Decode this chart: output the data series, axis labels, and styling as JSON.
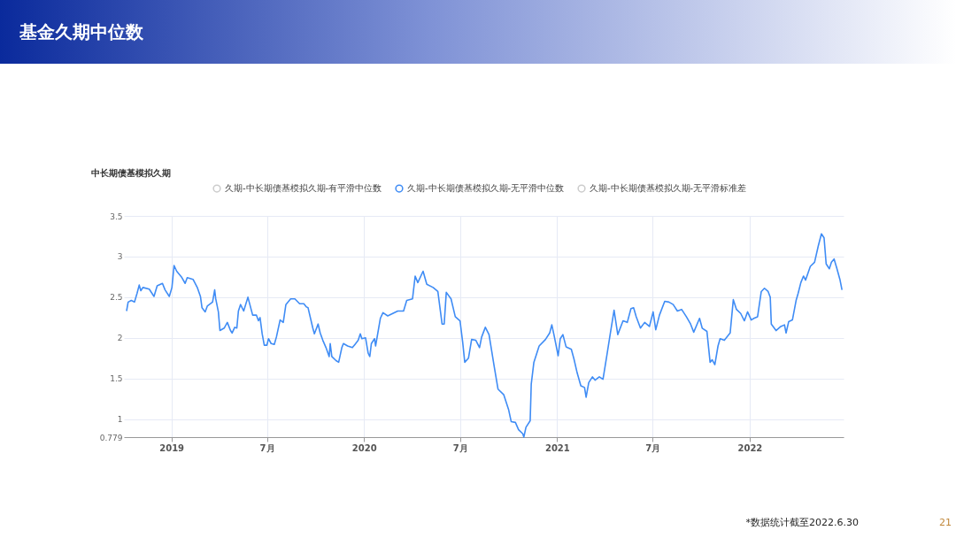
{
  "chart_data": {
    "type": "line",
    "title": "基金久期中位数",
    "subtitle": "中长期债基模拟久期",
    "annotations": [
      "*数据统计截至2022.6.30",
      "21"
    ],
    "xlim": [
      "2018-10-03",
      "2022-06-28"
    ],
    "xticks": [
      {
        "value": "2019-01-01",
        "label": "2019"
      },
      {
        "value": "2019-07-01",
        "label": "7月"
      },
      {
        "value": "2020-01-01",
        "label": "2020"
      },
      {
        "value": "2020-07-01",
        "label": "7月"
      },
      {
        "value": "2021-01-01",
        "label": "2021"
      },
      {
        "value": "2021-07-01",
        "label": "7月"
      },
      {
        "value": "2022-01-01",
        "label": "2022"
      }
    ],
    "ylim": [
      0.779,
      3.5
    ],
    "yticks": [
      0.779,
      1,
      1.5,
      2,
      2.5,
      3,
      3.5
    ],
    "grid": true,
    "legend": "top",
    "series": [
      {
        "name": "久期-中长期债基模拟久期-有平滑中位数",
        "color": "#cccccc"
      },
      {
        "name": "久期-中长期债基模拟久期-无平滑中位数",
        "color": "#3f8cf5",
        "x": [
          "2018-10-08",
          "2018-10-11",
          "2018-10-17",
          "2018-10-23",
          "2018-10-28",
          "2018-11-01",
          "2018-11-04",
          "2018-11-08",
          "2018-11-20",
          "2018-11-29",
          "2018-12-05",
          "2018-12-15",
          "2018-12-20",
          "2018-12-28",
          "2019-01-02",
          "2019-01-06",
          "2019-01-11",
          "2019-01-20",
          "2019-01-27",
          "2019-01-31",
          "2019-02-11",
          "2019-02-19",
          "2019-02-25",
          "2019-02-28",
          "2019-03-06",
          "2019-03-10",
          "2019-03-20",
          "2019-03-24",
          "2019-03-26",
          "2019-03-31",
          "2019-04-03",
          "2019-04-11",
          "2019-04-17",
          "2019-04-23",
          "2019-04-26",
          "2019-05-01",
          "2019-05-05",
          "2019-05-08",
          "2019-05-12",
          "2019-05-18",
          "2019-05-26",
          "2019-06-04",
          "2019-06-11",
          "2019-06-15",
          "2019-06-18",
          "2019-06-22",
          "2019-06-26",
          "2019-07-01",
          "2019-07-04",
          "2019-07-09",
          "2019-07-15",
          "2019-07-19",
          "2019-07-26",
          "2019-08-01",
          "2019-08-06",
          "2019-08-15",
          "2019-08-23",
          "2019-09-01",
          "2019-09-09",
          "2019-09-14",
          "2019-09-17",
          "2019-09-26",
          "2019-09-29",
          "2019-10-06",
          "2019-10-10",
          "2019-10-15",
          "2019-10-21",
          "2019-10-27",
          "2019-10-29",
          "2019-11-01",
          "2019-11-09",
          "2019-11-14",
          "2019-11-20",
          "2019-11-23",
          "2019-12-01",
          "2019-12-10",
          "2019-12-15",
          "2019-12-21",
          "2019-12-25",
          "2019-12-28",
          "2020-01-04",
          "2020-01-09",
          "2020-01-12",
          "2020-01-15",
          "2020-01-21",
          "2020-01-23",
          "2020-02-01",
          "2020-02-06",
          "2020-02-15",
          "2020-03-05",
          "2020-03-16",
          "2020-03-22",
          "2020-04-02",
          "2020-04-07",
          "2020-04-12",
          "2020-04-22",
          "2020-04-29",
          "2020-05-11",
          "2020-05-20",
          "2020-05-28",
          "2020-06-01",
          "2020-06-05",
          "2020-06-14",
          "2020-06-22",
          "2020-07-01",
          "2020-07-06",
          "2020-07-10",
          "2020-07-17",
          "2020-07-23",
          "2020-07-31",
          "2020-08-07",
          "2020-08-11",
          "2020-08-18",
          "2020-08-25",
          "2020-09-04",
          "2020-09-11",
          "2020-09-22",
          "2020-10-01",
          "2020-10-06",
          "2020-10-14",
          "2020-10-20",
          "2020-10-28",
          "2020-10-30",
          "2020-11-03",
          "2020-11-11",
          "2020-11-13",
          "2020-11-18",
          "2020-11-28",
          "2020-12-10",
          "2020-12-18",
          "2020-12-22",
          "2020-12-26",
          "2021-01-03",
          "2021-01-07",
          "2021-01-12",
          "2021-01-18",
          "2021-01-28",
          "2021-02-02",
          "2021-02-08",
          "2021-02-15",
          "2021-02-22",
          "2021-02-25",
          "2021-03-02",
          "2021-03-09",
          "2021-03-14",
          "2021-03-22",
          "2021-03-29",
          "2021-04-05",
          "2021-04-12",
          "2021-04-19",
          "2021-04-26",
          "2021-05-06",
          "2021-05-14",
          "2021-05-21",
          "2021-05-26",
          "2021-05-31",
          "2021-06-08",
          "2021-06-16",
          "2021-06-25",
          "2021-07-02",
          "2021-07-07",
          "2021-07-14",
          "2021-07-24",
          "2021-08-01",
          "2021-08-09",
          "2021-08-17",
          "2021-08-25",
          "2021-09-03",
          "2021-09-11",
          "2021-09-17",
          "2021-09-28",
          "2021-10-03",
          "2021-10-12",
          "2021-10-18",
          "2021-10-22",
          "2021-10-27",
          "2021-11-02",
          "2021-11-06",
          "2021-11-14",
          "2021-11-25",
          "2021-12-01",
          "2021-12-07",
          "2021-12-15",
          "2021-12-22",
          "2021-12-28",
          "2022-01-04",
          "2022-01-09",
          "2022-01-16",
          "2022-01-23",
          "2022-01-29",
          "2022-02-05",
          "2022-02-09",
          "2022-02-11",
          "2022-02-20",
          "2022-03-01",
          "2022-03-08",
          "2022-03-11",
          "2022-03-16",
          "2022-03-23",
          "2022-03-30",
          "2022-04-03",
          "2022-04-08",
          "2022-04-13",
          "2022-04-17",
          "2022-04-26",
          "2022-05-04",
          "2022-05-11",
          "2022-05-17",
          "2022-05-22",
          "2022-05-26",
          "2022-06-01",
          "2022-06-05",
          "2022-06-10",
          "2022-06-15",
          "2022-06-21",
          "2022-06-25"
        ],
        "values": [
          2.33,
          2.44,
          2.46,
          2.44,
          2.55,
          2.65,
          2.58,
          2.62,
          2.6,
          2.51,
          2.64,
          2.67,
          2.59,
          2.51,
          2.62,
          2.89,
          2.82,
          2.75,
          2.67,
          2.74,
          2.72,
          2.62,
          2.51,
          2.37,
          2.32,
          2.39,
          2.44,
          2.59,
          2.48,
          2.32,
          2.09,
          2.12,
          2.19,
          2.09,
          2.06,
          2.13,
          2.12,
          2.33,
          2.41,
          2.33,
          2.5,
          2.28,
          2.28,
          2.21,
          2.25,
          2.05,
          1.91,
          1.91,
          1.99,
          1.93,
          1.92,
          2.01,
          2.22,
          2.19,
          2.41,
          2.48,
          2.48,
          2.42,
          2.42,
          2.38,
          2.37,
          2.12,
          2.05,
          2.17,
          2.06,
          1.97,
          1.88,
          1.77,
          1.93,
          1.77,
          1.72,
          1.7,
          1.88,
          1.93,
          1.9,
          1.88,
          1.92,
          1.97,
          2.05,
          1.99,
          2.0,
          1.81,
          1.77,
          1.93,
          1.99,
          1.9,
          2.24,
          2.31,
          2.27,
          2.33,
          2.33,
          2.46,
          2.48,
          2.76,
          2.68,
          2.82,
          2.66,
          2.62,
          2.57,
          2.17,
          2.17,
          2.56,
          2.48,
          2.26,
          2.21,
          1.95,
          1.7,
          1.75,
          1.98,
          1.97,
          1.88,
          2.01,
          2.13,
          2.04,
          1.64,
          1.37,
          1.3,
          1.12,
          0.97,
          0.96,
          0.87,
          0.82,
          0.78,
          0.9,
          0.98,
          1.43,
          1.7,
          1.9,
          1.98,
          2.06,
          2.16,
          2.04,
          1.78,
          1.99,
          2.04,
          1.89,
          1.86,
          1.74,
          1.57,
          1.41,
          1.39,
          1.27,
          1.45,
          1.52,
          1.48,
          1.52,
          1.49,
          1.77,
          2.06,
          2.34,
          2.04,
          2.21,
          2.19,
          2.36,
          2.37,
          2.26,
          2.12,
          2.19,
          2.14,
          2.32,
          2.1,
          2.28,
          2.45,
          2.44,
          2.41,
          2.33,
          2.35,
          2.26,
          2.17,
          2.07,
          2.24,
          2.12,
          2.08,
          1.7,
          1.73,
          1.67,
          1.9,
          1.99,
          1.97,
          2.06,
          2.47,
          2.35,
          2.3,
          2.21,
          2.32,
          2.22,
          2.24,
          2.26,
          2.57,
          2.61,
          2.57,
          2.5,
          2.17,
          2.09,
          2.14,
          2.16,
          2.06,
          2.2,
          2.22,
          2.46,
          2.55,
          2.68,
          2.76,
          2.71,
          2.88,
          2.93,
          3.13,
          3.28,
          3.23,
          2.91,
          2.85,
          2.93,
          2.97,
          2.86,
          2.72,
          2.59
        ]
      },
      {
        "name": "久期-中长期债基模拟久期-无平滑标准差",
        "color": "#cccccc"
      }
    ]
  }
}
